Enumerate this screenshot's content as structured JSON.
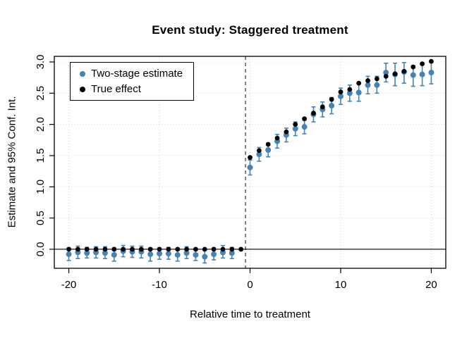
{
  "title": "Event study: Staggered treatment",
  "axes": {
    "x": {
      "label": "Relative time to treatment",
      "tick_values": [
        -20,
        -10,
        0,
        10,
        20
      ],
      "tick_labels": [
        "-20",
        "-10",
        "0",
        "10",
        "20"
      ]
    },
    "y": {
      "label": "Estimate and 95% Conf. Int.",
      "tick_values": [
        0,
        0.5,
        1,
        1.5,
        2,
        2.5,
        3
      ],
      "tick_labels": [
        "0.0",
        "0.5",
        "1.0",
        "1.5",
        "2.0",
        "2.5",
        "3.0"
      ]
    }
  },
  "legend": {
    "items": [
      {
        "label": "Two-stage estimate",
        "color": "#4682B4"
      },
      {
        "label": "True effect",
        "color": "#000000"
      }
    ]
  },
  "colors": {
    "two_stage": "#4682B4",
    "true_effect": "#000000",
    "grid": "#D3D3D3",
    "dashed_line": "#333333",
    "zero_line": "#000000",
    "box": "#000000"
  },
  "chart_data": {
    "type": "scatter",
    "title": "Event study: Staggered treatment",
    "xlabel": "Relative time to treatment",
    "ylabel": "Estimate and 95% Conf. Int.",
    "xlim": [
      -21.6,
      21.6
    ],
    "ylim": [
      -0.305,
      3.09
    ],
    "grid": "dotted-at-ticks",
    "legend_position": "top-left",
    "hline": {
      "y": 0,
      "style": "solid"
    },
    "vline": {
      "x": -0.5,
      "style": "dashed"
    },
    "x": [
      -20,
      -19,
      -18,
      -17,
      -16,
      -15,
      -14,
      -13,
      -12,
      -11,
      -10,
      -9,
      -8,
      -7,
      -6,
      -5,
      -4,
      -3,
      -2,
      -1,
      0,
      1,
      2,
      3,
      4,
      5,
      6,
      7,
      8,
      9,
      10,
      11,
      12,
      13,
      14,
      15,
      16,
      17,
      18,
      19,
      20
    ],
    "series": [
      {
        "name": "Two-stage estimate",
        "color": "#4682B4",
        "marker": "circle",
        "has_error_bars": true,
        "ref_period": -1,
        "estimates": [
          -0.08,
          -0.05,
          -0.06,
          -0.05,
          -0.06,
          -0.09,
          -0.03,
          -0.04,
          -0.04,
          -0.08,
          -0.07,
          -0.07,
          -0.09,
          -0.06,
          -0.09,
          -0.12,
          -0.08,
          -0.05,
          -0.06,
          0,
          1.31,
          1.52,
          1.59,
          1.73,
          1.83,
          1.93,
          1.96,
          2.16,
          2.24,
          2.3,
          2.45,
          2.5,
          2.51,
          2.63,
          2.63,
          2.83,
          2.8,
          2.84,
          2.79,
          2.8,
          2.83
        ],
        "ci_low": [
          -0.18,
          -0.15,
          -0.14,
          -0.14,
          -0.15,
          -0.19,
          -0.12,
          -0.13,
          -0.14,
          -0.19,
          -0.16,
          -0.16,
          -0.19,
          -0.15,
          -0.18,
          -0.22,
          -0.17,
          -0.14,
          -0.15,
          0,
          1.19,
          1.41,
          1.48,
          1.62,
          1.72,
          1.82,
          1.85,
          2.04,
          2.12,
          2.17,
          2.32,
          2.37,
          2.37,
          2.49,
          2.5,
          2.68,
          2.62,
          2.66,
          2.61,
          2.62,
          2.65
        ],
        "ci_high": [
          0.02,
          0.05,
          0.03,
          0.04,
          0.04,
          0.02,
          0.06,
          0.05,
          0.05,
          0.02,
          0.02,
          0.03,
          0.01,
          0.04,
          0.01,
          -0.02,
          0.02,
          0.06,
          0.03,
          0,
          1.43,
          1.63,
          1.7,
          1.84,
          1.94,
          2.04,
          2.07,
          2.28,
          2.36,
          2.43,
          2.58,
          2.63,
          2.65,
          2.77,
          2.77,
          2.98,
          2.98,
          2.99,
          2.94,
          2.96,
          2.99
        ]
      },
      {
        "name": "True effect",
        "color": "#000000",
        "marker": "circle",
        "has_error_bars": false,
        "values": [
          0,
          0,
          0,
          0,
          0,
          0,
          0,
          0,
          0,
          0,
          0,
          0,
          0,
          0,
          0,
          0,
          0,
          0,
          0,
          0,
          1.47,
          1.58,
          1.68,
          1.78,
          1.88,
          2.0,
          2.09,
          2.18,
          2.28,
          2.4,
          2.52,
          2.56,
          2.66,
          2.7,
          2.73,
          2.77,
          2.81,
          2.85,
          2.92,
          2.97,
          3.01
        ]
      }
    ]
  }
}
